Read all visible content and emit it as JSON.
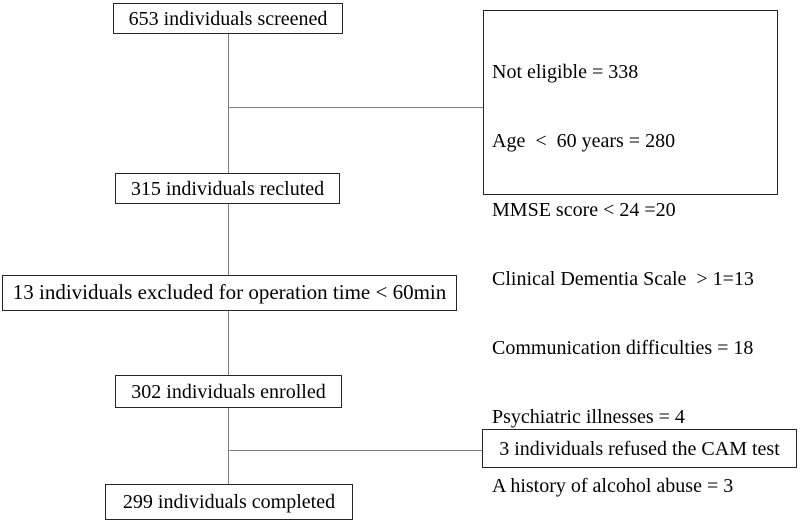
{
  "flow": {
    "screened": {
      "label": "653 individuals screened"
    },
    "not_eligible": {
      "lines": [
        "Not eligible = 338",
        "Age  <  60 years = 280",
        "MMSE score < 24 =20",
        "Clinical Dementia Scale  > 1=13",
        "Communication difficulties = 18",
        "Psychiatric illnesses = 4",
        "A history of alcohol abuse = 3"
      ]
    },
    "recluted": {
      "label": "315 individuals recluted"
    },
    "excluded_operation": {
      "label": "13 individuals excluded for operation time < 60min"
    },
    "enrolled": {
      "label": "302 individuals enrolled"
    },
    "refused_cam": {
      "label": "3 individuals refused the CAM test"
    },
    "completed": {
      "label": "299 individuals completed"
    }
  },
  "colors": {
    "background": "#ffffff",
    "box_border": "#262626",
    "connector": "#7e7e7e",
    "text": "#000000"
  }
}
